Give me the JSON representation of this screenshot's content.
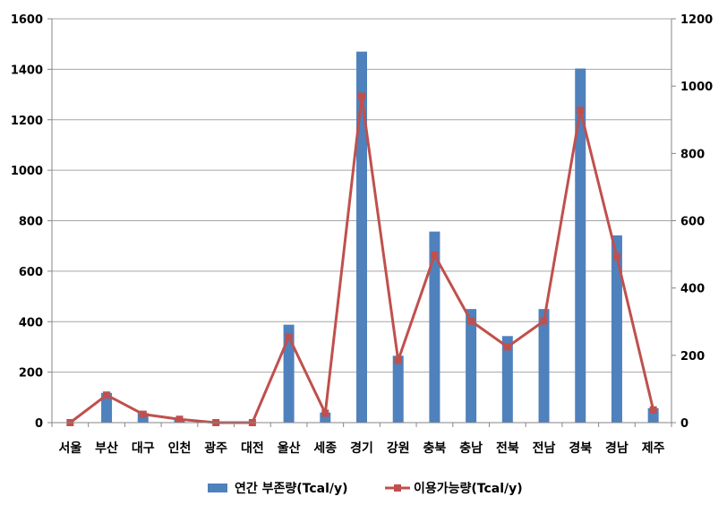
{
  "chart_data": {
    "type": "bar",
    "categories": [
      "서울",
      "부산",
      "대구",
      "인천",
      "광주",
      "대전",
      "울산",
      "세종",
      "경기",
      "강원",
      "충북",
      "충남",
      "전북",
      "전남",
      "경북",
      "경남",
      "제주"
    ],
    "series": [
      {
        "name": "연간 부존량(Tcal/y)",
        "type": "bar",
        "axis": "left",
        "color": "#4f81bd",
        "values": [
          0,
          118,
          38,
          15,
          3,
          2,
          388,
          40,
          1470,
          265,
          757,
          450,
          343,
          450,
          1403,
          742,
          57
        ]
      },
      {
        "name": "이용가능량(Tcal/y)",
        "type": "line",
        "axis": "right",
        "color": "#c0504d",
        "values": [
          0,
          82,
          25,
          10,
          0,
          0,
          255,
          28,
          970,
          185,
          498,
          302,
          225,
          302,
          928,
          493,
          38
        ]
      }
    ],
    "y_left": {
      "min": 0,
      "max": 1600,
      "step": 200,
      "ticks": [
        "0",
        "200",
        "400",
        "600",
        "800",
        "1000",
        "1200",
        "1400",
        "1600"
      ]
    },
    "y_right": {
      "min": 0,
      "max": 1200,
      "step": 200,
      "ticks": [
        "0",
        "200",
        "400",
        "600",
        "800",
        "1000",
        "1200"
      ]
    },
    "grid": true,
    "legend_position": "bottom"
  }
}
